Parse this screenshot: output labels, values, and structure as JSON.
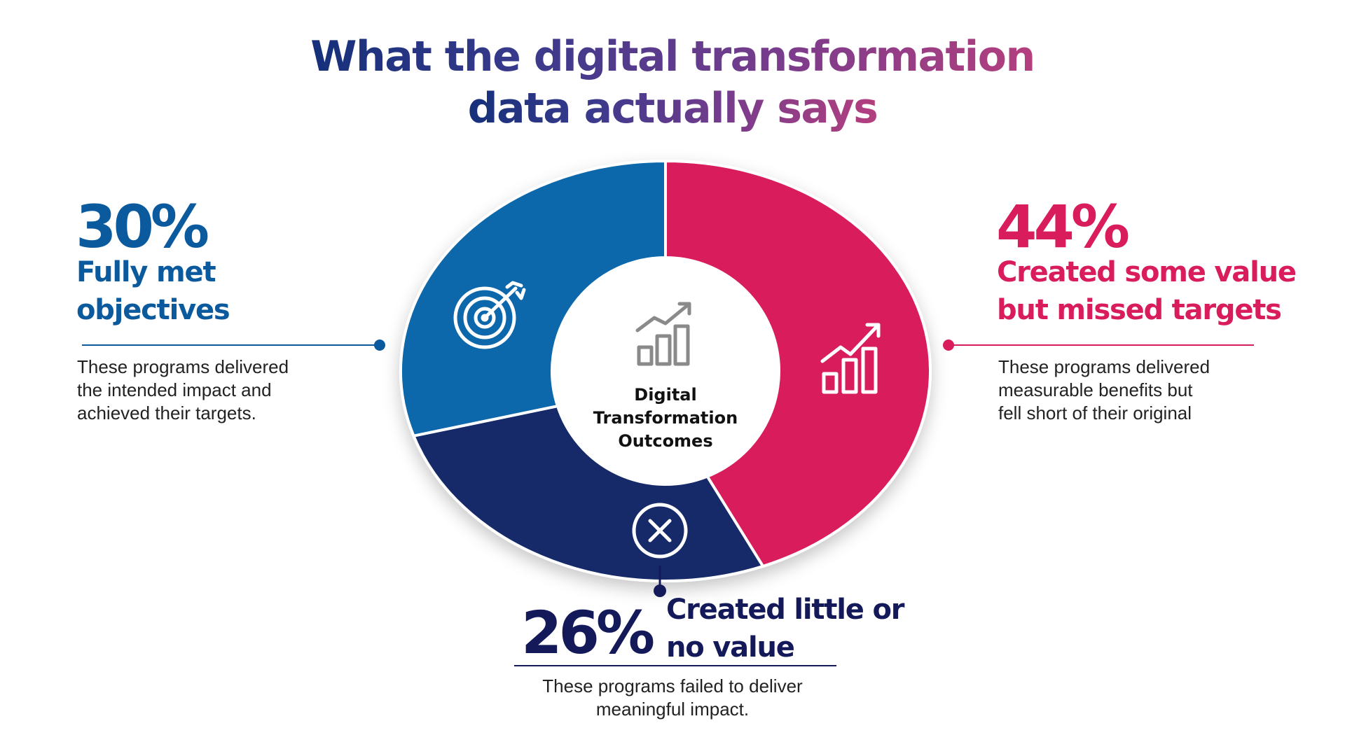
{
  "title": {
    "line1": "What the digital transformation",
    "line2": "data actually says"
  },
  "center": {
    "line1": "Digital",
    "line2": "Transformation",
    "line3": "Outcomes"
  },
  "colors": {
    "fully_met": "#0767ab",
    "some_value": "#d91c5c",
    "little_value": "#142a6a"
  },
  "segments": [
    {
      "key": "fully_met",
      "percent": "30%",
      "heading_line1": "Fully met",
      "heading_line2": "objectives",
      "description": [
        "These programs delivered",
        "the intended impact and",
        "achieved their targets."
      ],
      "icon": "target-icon"
    },
    {
      "key": "some_value",
      "percent": "44%",
      "heading_line1": "Created some value",
      "heading_line2": "but missed targets",
      "description": [
        "These programs delivered",
        "measurable benefits but",
        "fell short of their original"
      ],
      "icon": "bar-growth-icon"
    },
    {
      "key": "little_value",
      "percent": "26%",
      "heading_line1": "Created little or",
      "heading_line2": "no value",
      "description": [
        "These programs failed to deliver",
        "meaningful impact."
      ],
      "icon": "x-circle-icon"
    }
  ],
  "chart_data": {
    "type": "pie",
    "categories": [
      "Fully met objectives",
      "Created some value but missed targets",
      "Created little or no value"
    ],
    "values": [
      30,
      44,
      26
    ],
    "colors": [
      "#0767ab",
      "#d91c5c",
      "#142a6a"
    ],
    "title": "What the digital transformation data actually says"
  }
}
